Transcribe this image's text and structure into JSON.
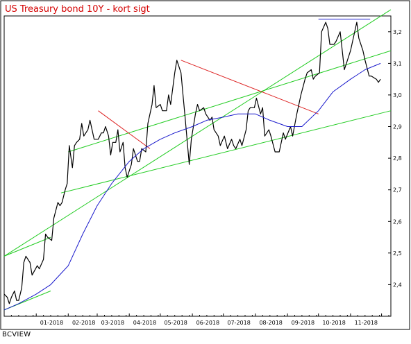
{
  "chart_data": {
    "type": "line",
    "title": "US Treasury bond 10Y - kort sigt",
    "source": "BCVIEW",
    "xlabel": "",
    "ylabel": "",
    "x_range": [
      "2017-12-01",
      "2018-12-10"
    ],
    "ylim": [
      2.3,
      3.25
    ],
    "x_tick_labels": [
      "01-2018",
      "02-2018",
      "03-2018",
      "04-2018",
      "05-2018",
      "06-2018",
      "07-2018",
      "08-2018",
      "09-2018",
      "10-2018",
      "11-2018"
    ],
    "y_tick_labels": [
      "2,4",
      "2,5",
      "2,6",
      "2,7",
      "2,8",
      "2,9",
      "3,0",
      "3,1",
      "3,2"
    ],
    "y_ticks": [
      2.4,
      2.5,
      2.6,
      2.7,
      2.8,
      2.9,
      3.0,
      3.1,
      3.2
    ],
    "grid": false,
    "colors": {
      "price": "#000000",
      "moving_average": "#1a1acc",
      "trend_channel": "#22cc22",
      "resistance": "#dd2222",
      "top_line": "#1a1acc",
      "title": "#d40000"
    },
    "series": [
      {
        "style": "price",
        "points": [
          [
            "2017-12-01",
            2.37
          ],
          [
            "2017-12-04",
            2.36
          ],
          [
            "2017-12-06",
            2.34
          ],
          [
            "2017-12-08",
            2.36
          ],
          [
            "2017-12-11",
            2.38
          ],
          [
            "2017-12-13",
            2.35
          ],
          [
            "2017-12-15",
            2.35
          ],
          [
            "2017-12-18",
            2.39
          ],
          [
            "2017-12-20",
            2.47
          ],
          [
            "2017-12-22",
            2.49
          ],
          [
            "2017-12-26",
            2.47
          ],
          [
            "2017-12-28",
            2.43
          ],
          [
            "2018-01-02",
            2.46
          ],
          [
            "2018-01-04",
            2.45
          ],
          [
            "2018-01-08",
            2.48
          ],
          [
            "2018-01-10",
            2.56
          ],
          [
            "2018-01-12",
            2.55
          ],
          [
            "2018-01-16",
            2.54
          ],
          [
            "2018-01-18",
            2.61
          ],
          [
            "2018-01-22",
            2.66
          ],
          [
            "2018-01-24",
            2.65
          ],
          [
            "2018-01-26",
            2.66
          ],
          [
            "2018-01-29",
            2.7
          ],
          [
            "2018-01-31",
            2.72
          ],
          [
            "2018-02-02",
            2.84
          ],
          [
            "2018-02-05",
            2.77
          ],
          [
            "2018-02-07",
            2.84
          ],
          [
            "2018-02-09",
            2.85
          ],
          [
            "2018-02-12",
            2.86
          ],
          [
            "2018-02-14",
            2.91
          ],
          [
            "2018-02-16",
            2.87
          ],
          [
            "2018-02-20",
            2.89
          ],
          [
            "2018-02-22",
            2.92
          ],
          [
            "2018-02-26",
            2.86
          ],
          [
            "2018-02-28",
            2.86
          ],
          [
            "2018-03-02",
            2.86
          ],
          [
            "2018-03-05",
            2.88
          ],
          [
            "2018-03-07",
            2.88
          ],
          [
            "2018-03-09",
            2.9
          ],
          [
            "2018-03-12",
            2.87
          ],
          [
            "2018-03-14",
            2.81
          ],
          [
            "2018-03-16",
            2.85
          ],
          [
            "2018-03-19",
            2.85
          ],
          [
            "2018-03-21",
            2.89
          ],
          [
            "2018-03-23",
            2.82
          ],
          [
            "2018-03-26",
            2.85
          ],
          [
            "2018-03-28",
            2.77
          ],
          [
            "2018-03-30",
            2.74
          ],
          [
            "2018-04-03",
            2.78
          ],
          [
            "2018-04-05",
            2.83
          ],
          [
            "2018-04-09",
            2.79
          ],
          [
            "2018-04-11",
            2.79
          ],
          [
            "2018-04-13",
            2.83
          ],
          [
            "2018-04-17",
            2.82
          ],
          [
            "2018-04-19",
            2.91
          ],
          [
            "2018-04-23",
            2.97
          ],
          [
            "2018-04-25",
            3.03
          ],
          [
            "2018-04-27",
            2.96
          ],
          [
            "2018-05-01",
            2.97
          ],
          [
            "2018-05-03",
            2.95
          ],
          [
            "2018-05-07",
            2.95
          ],
          [
            "2018-05-09",
            3.0
          ],
          [
            "2018-05-11",
            2.97
          ],
          [
            "2018-05-15",
            3.07
          ],
          [
            "2018-05-17",
            3.11
          ],
          [
            "2018-05-21",
            3.07
          ],
          [
            "2018-05-23",
            3.0
          ],
          [
            "2018-05-25",
            2.93
          ],
          [
            "2018-05-29",
            2.78
          ],
          [
            "2018-05-31",
            2.86
          ],
          [
            "2018-06-04",
            2.94
          ],
          [
            "2018-06-06",
            2.97
          ],
          [
            "2018-06-08",
            2.95
          ],
          [
            "2018-06-12",
            2.96
          ],
          [
            "2018-06-14",
            2.94
          ],
          [
            "2018-06-18",
            2.92
          ],
          [
            "2018-06-20",
            2.93
          ],
          [
            "2018-06-22",
            2.89
          ],
          [
            "2018-06-26",
            2.87
          ],
          [
            "2018-06-28",
            2.84
          ],
          [
            "2018-07-02",
            2.87
          ],
          [
            "2018-07-05",
            2.83
          ],
          [
            "2018-07-09",
            2.86
          ],
          [
            "2018-07-11",
            2.84
          ],
          [
            "2018-07-13",
            2.83
          ],
          [
            "2018-07-17",
            2.86
          ],
          [
            "2018-07-19",
            2.84
          ],
          [
            "2018-07-23",
            2.89
          ],
          [
            "2018-07-25",
            2.95
          ],
          [
            "2018-07-27",
            2.96
          ],
          [
            "2018-07-31",
            2.96
          ],
          [
            "2018-08-02",
            2.99
          ],
          [
            "2018-08-06",
            2.94
          ],
          [
            "2018-08-08",
            2.96
          ],
          [
            "2018-08-10",
            2.87
          ],
          [
            "2018-08-14",
            2.89
          ],
          [
            "2018-08-16",
            2.87
          ],
          [
            "2018-08-20",
            2.82
          ],
          [
            "2018-08-22",
            2.82
          ],
          [
            "2018-08-24",
            2.82
          ],
          [
            "2018-08-28",
            2.88
          ],
          [
            "2018-08-30",
            2.86
          ],
          [
            "2018-09-04",
            2.9
          ],
          [
            "2018-09-06",
            2.87
          ],
          [
            "2018-09-10",
            2.94
          ],
          [
            "2018-09-12",
            2.97
          ],
          [
            "2018-09-14",
            3.0
          ],
          [
            "2018-09-18",
            3.05
          ],
          [
            "2018-09-20",
            3.07
          ],
          [
            "2018-09-24",
            3.08
          ],
          [
            "2018-09-26",
            3.05
          ],
          [
            "2018-09-28",
            3.06
          ],
          [
            "2018-10-02",
            3.07
          ],
          [
            "2018-10-04",
            3.2
          ],
          [
            "2018-10-08",
            3.23
          ],
          [
            "2018-10-10",
            3.21
          ],
          [
            "2018-10-12",
            3.16
          ],
          [
            "2018-10-16",
            3.16
          ],
          [
            "2018-10-18",
            3.17
          ],
          [
            "2018-10-22",
            3.2
          ],
          [
            "2018-10-24",
            3.14
          ],
          [
            "2018-10-26",
            3.08
          ],
          [
            "2018-10-30",
            3.12
          ],
          [
            "2018-11-01",
            3.14
          ],
          [
            "2018-11-05",
            3.2
          ],
          [
            "2018-11-07",
            3.23
          ],
          [
            "2018-11-09",
            3.18
          ],
          [
            "2018-11-13",
            3.14
          ],
          [
            "2018-11-15",
            3.11
          ],
          [
            "2018-11-19",
            3.06
          ],
          [
            "2018-11-21",
            3.06
          ],
          [
            "2018-11-26",
            3.05
          ],
          [
            "2018-11-28",
            3.04
          ],
          [
            "2018-11-30",
            3.05
          ]
        ]
      },
      {
        "style": "moving_average",
        "points": [
          [
            "2017-12-01",
            2.32
          ],
          [
            "2017-12-15",
            2.34
          ],
          [
            "2018-01-01",
            2.37
          ],
          [
            "2018-01-15",
            2.4
          ],
          [
            "2018-02-01",
            2.46
          ],
          [
            "2018-02-15",
            2.56
          ],
          [
            "2018-03-01",
            2.65
          ],
          [
            "2018-03-15",
            2.72
          ],
          [
            "2018-04-01",
            2.79
          ],
          [
            "2018-04-15",
            2.83
          ],
          [
            "2018-05-01",
            2.86
          ],
          [
            "2018-05-15",
            2.88
          ],
          [
            "2018-06-01",
            2.9
          ],
          [
            "2018-06-15",
            2.92
          ],
          [
            "2018-07-01",
            2.93
          ],
          [
            "2018-07-15",
            2.94
          ],
          [
            "2018-08-01",
            2.94
          ],
          [
            "2018-08-15",
            2.92
          ],
          [
            "2018-09-01",
            2.9
          ],
          [
            "2018-09-15",
            2.9
          ],
          [
            "2018-10-01",
            2.95
          ],
          [
            "2018-10-15",
            3.01
          ],
          [
            "2018-11-01",
            3.05
          ],
          [
            "2018-11-15",
            3.08
          ],
          [
            "2018-11-30",
            3.1
          ]
        ]
      }
    ],
    "annotations": [
      {
        "kind": "trend_channel",
        "from": [
          "2017-12-01",
          2.49
        ],
        "to": [
          "2018-12-10",
          3.27
        ]
      },
      {
        "kind": "trend_channel",
        "from": [
          "2018-02-01",
          2.82
        ],
        "to": [
          "2018-12-10",
          3.14
        ]
      },
      {
        "kind": "trend_channel",
        "from": [
          "2018-01-25",
          2.69
        ],
        "to": [
          "2018-12-10",
          2.95
        ]
      },
      {
        "kind": "trend_channel",
        "from": [
          "2017-12-01",
          2.32
        ],
        "to": [
          "2018-01-15",
          2.38
        ]
      },
      {
        "kind": "trend_channel",
        "from": [
          "2017-12-01",
          2.49
        ],
        "to": [
          "2018-01-15",
          2.55
        ]
      },
      {
        "kind": "resistance",
        "from": [
          "2018-03-02",
          2.95
        ],
        "to": [
          "2018-04-21",
          2.83
        ]
      },
      {
        "kind": "resistance",
        "from": [
          "2018-05-21",
          3.11
        ],
        "to": [
          "2018-10-01",
          2.94
        ]
      },
      {
        "kind": "top_line",
        "from": [
          "2018-10-01",
          3.24
        ],
        "to": [
          "2018-11-20",
          3.24
        ]
      }
    ]
  }
}
